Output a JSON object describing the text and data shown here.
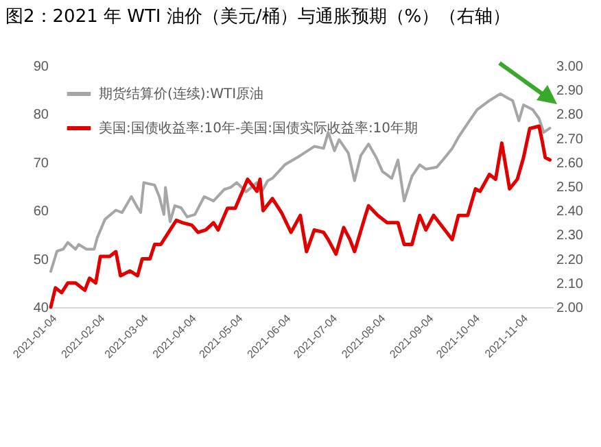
{
  "chart_data": {
    "type": "line",
    "title": "图2：2021 年 WTI 油价（美元/桶）与通胀预期（%）（右轴）",
    "xlim": [
      "2021-01-04",
      "2021-11-24"
    ],
    "xticks": [
      "2021-01-04",
      "2021-02-04",
      "2021-03-04",
      "2021-04-04",
      "2021-05-04",
      "2021-06-04",
      "2021-07-04",
      "2021-08-04",
      "2021-09-04",
      "2021-10-04",
      "2021-11-04"
    ],
    "ylim": [
      40,
      90
    ],
    "yticks": [
      40,
      50,
      60,
      70,
      80,
      90
    ],
    "y2lim": [
      2.0,
      3.0
    ],
    "y2ticks": [
      {
        "value": 2.0,
        "label": "2.00"
      },
      {
        "value": 2.1,
        "label": "2.10"
      },
      {
        "value": 2.2,
        "label": "2.20"
      },
      {
        "value": 2.3,
        "label": "2.30"
      },
      {
        "value": 2.4,
        "label": "2.40"
      },
      {
        "value": 2.5,
        "label": "2.50"
      },
      {
        "value": 2.6,
        "label": "2.60"
      },
      {
        "value": 2.7,
        "label": "2.70"
      },
      {
        "value": 2.8,
        "label": "2.80"
      },
      {
        "value": 2.9,
        "label": "2.90"
      },
      {
        "value": 3.0,
        "label": "3.00"
      }
    ],
    "legend": "top left",
    "grid": false,
    "series": [
      {
        "name": "期货结算价(连续):WTI原油",
        "color": "#a6a6a6",
        "x": [
          "2021-01-04",
          "2021-01-08",
          "2021-01-12",
          "2021-01-15",
          "2021-01-20",
          "2021-01-22",
          "2021-01-27",
          "2021-02-01",
          "2021-02-03",
          "2021-02-08",
          "2021-02-15",
          "2021-02-19",
          "2021-02-25",
          "2021-03-01",
          "2021-03-03",
          "2021-03-05",
          "2021-03-12",
          "2021-03-15",
          "2021-03-18",
          "2021-03-19",
          "2021-03-22",
          "2021-03-25",
          "2021-03-29",
          "2021-04-02",
          "2021-04-07",
          "2021-04-13",
          "2021-04-19",
          "2021-04-26",
          "2021-04-30",
          "2021-05-04",
          "2021-05-10",
          "2021-05-17",
          "2021-05-20",
          "2021-05-24",
          "2021-05-27",
          "2021-06-04",
          "2021-06-14",
          "2021-06-23",
          "2021-06-29",
          "2021-07-02",
          "2021-07-06",
          "2021-07-09",
          "2021-07-15",
          "2021-07-19",
          "2021-07-23",
          "2021-07-28",
          "2021-08-02",
          "2021-08-06",
          "2021-08-12",
          "2021-08-16",
          "2021-08-20",
          "2021-08-25",
          "2021-08-30",
          "2021-09-03",
          "2021-09-10",
          "2021-09-14",
          "2021-09-20",
          "2021-09-24",
          "2021-09-30",
          "2021-10-06",
          "2021-10-14",
          "2021-10-21",
          "2021-10-26",
          "2021-10-29",
          "2021-11-02",
          "2021-11-05",
          "2021-11-11",
          "2021-11-15",
          "2021-11-18",
          "2021-11-22"
        ],
        "values": [
          47.4,
          51.6,
          52,
          53.4,
          52,
          53,
          52,
          52,
          54.4,
          58.2,
          60.1,
          59.6,
          62.9,
          60.6,
          59.6,
          65.8,
          65.3,
          62.9,
          59.2,
          64.8,
          57.7,
          61,
          60.6,
          58.7,
          59.2,
          62.9,
          62,
          64.4,
          64.8,
          65.8,
          63.9,
          65.8,
          63.9,
          66.2,
          66.7,
          69.5,
          71.4,
          73.3,
          72.9,
          76.2,
          72.4,
          74.7,
          71.9,
          66.2,
          71.4,
          73.8,
          71,
          68.1,
          66.7,
          70.5,
          62,
          67.1,
          69.5,
          68.6,
          69,
          70.5,
          72.9,
          75.2,
          78.1,
          80.9,
          82.8,
          84.2,
          83.3,
          82.8,
          78.6,
          81.9,
          80.9,
          79.1,
          76.2,
          77.1
        ]
      },
      {
        "name": "美国:国债收益率:10年-美国:国债实际收益率:10年期",
        "color": "#e00000",
        "axis": "y2",
        "x": [
          "2021-01-04",
          "2021-01-07",
          "2021-01-11",
          "2021-01-15",
          "2021-01-20",
          "2021-01-26",
          "2021-01-29",
          "2021-02-02",
          "2021-02-05",
          "2021-02-11",
          "2021-02-15",
          "2021-02-18",
          "2021-02-24",
          "2021-03-01",
          "2021-03-04",
          "2021-03-09",
          "2021-03-12",
          "2021-03-16",
          "2021-03-22",
          "2021-03-26",
          "2021-03-30",
          "2021-04-05",
          "2021-04-09",
          "2021-04-14",
          "2021-04-19",
          "2021-04-22",
          "2021-04-28",
          "2021-05-03",
          "2021-05-07",
          "2021-05-11",
          "2021-05-17",
          "2021-05-19",
          "2021-05-21",
          "2021-05-27",
          "2021-06-02",
          "2021-06-08",
          "2021-06-14",
          "2021-06-18",
          "2021-06-23",
          "2021-06-29",
          "2021-07-02",
          "2021-07-07",
          "2021-07-12",
          "2021-07-16",
          "2021-07-19",
          "2021-07-26",
          "2021-07-28",
          "2021-08-03",
          "2021-08-09",
          "2021-08-16",
          "2021-08-20",
          "2021-08-25",
          "2021-08-30",
          "2021-09-03",
          "2021-09-08",
          "2021-09-14",
          "2021-09-20",
          "2021-09-24",
          "2021-09-30",
          "2021-10-05",
          "2021-10-08",
          "2021-10-14",
          "2021-10-18",
          "2021-10-22",
          "2021-10-27",
          "2021-11-01",
          "2021-11-05",
          "2021-11-09",
          "2021-11-15",
          "2021-11-17",
          "2021-11-19",
          "2021-11-22"
        ],
        "values": [
          2.0,
          2.08,
          2.06,
          2.1,
          2.1,
          2.07,
          2.12,
          2.1,
          2.21,
          2.21,
          2.23,
          2.13,
          2.15,
          2.13,
          2.2,
          2.2,
          2.26,
          2.26,
          2.32,
          2.36,
          2.35,
          2.34,
          2.31,
          2.32,
          2.35,
          2.32,
          2.41,
          2.41,
          2.47,
          2.53,
          2.48,
          2.53,
          2.4,
          2.45,
          2.39,
          2.31,
          2.38,
          2.23,
          2.32,
          2.31,
          2.28,
          2.22,
          2.33,
          2.28,
          2.23,
          2.38,
          2.42,
          2.38,
          2.35,
          2.35,
          2.26,
          2.26,
          2.38,
          2.32,
          2.38,
          2.33,
          2.28,
          2.38,
          2.38,
          2.49,
          2.48,
          2.55,
          2.53,
          2.68,
          2.49,
          2.53,
          2.62,
          2.74,
          2.75,
          2.69,
          2.62,
          2.61
        ]
      }
    ]
  }
}
